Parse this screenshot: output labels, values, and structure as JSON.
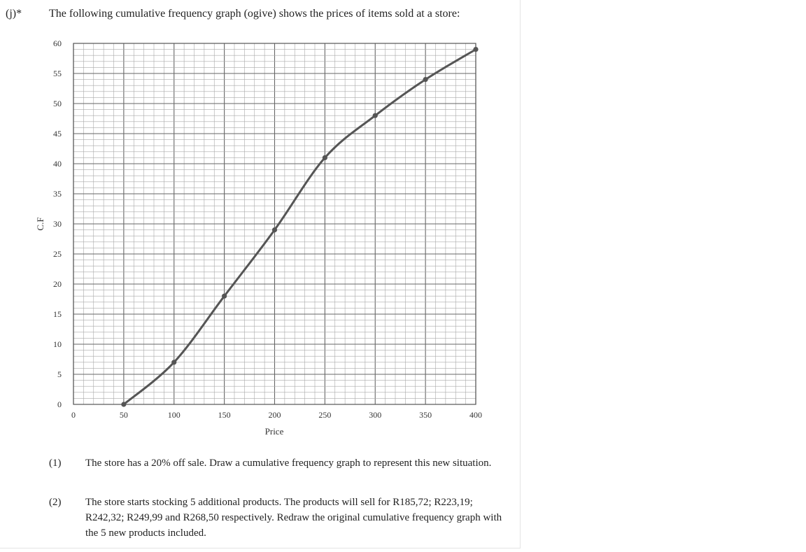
{
  "question": {
    "number": "(j)*",
    "intro": "The following cumulative frequency graph (ogive) shows the prices of items sold at a store:"
  },
  "chart_data": {
    "type": "line",
    "xlabel": "Price",
    "ylabel": "C.F",
    "xlim": [
      0,
      400
    ],
    "ylim": [
      0,
      60
    ],
    "x_ticks": [
      "0",
      "50",
      "100",
      "150",
      "200",
      "250",
      "300",
      "350",
      "400"
    ],
    "y_ticks": [
      "0",
      "5",
      "10",
      "15",
      "20",
      "25",
      "30",
      "35",
      "40",
      "45",
      "50",
      "55",
      "60"
    ],
    "grid": true,
    "series": [
      {
        "x": [
          50,
          100,
          150,
          200,
          250,
          300,
          350,
          400
        ],
        "y": [
          0,
          7,
          18,
          29,
          41,
          48,
          54,
          59
        ]
      }
    ],
    "line_color": "#555555"
  },
  "sub_questions": [
    {
      "number": "(1)",
      "text": "The store has a 20% off sale. Draw a cumulative frequency graph to represent this new situation."
    },
    {
      "number": "(2)",
      "text": "The store starts stocking 5 additional products. The products will sell for R185,72; R223,19; R242,32; R249,99 and R268,50 respectively. Redraw the original cumulative frequency graph with the 5 new products included."
    }
  ]
}
